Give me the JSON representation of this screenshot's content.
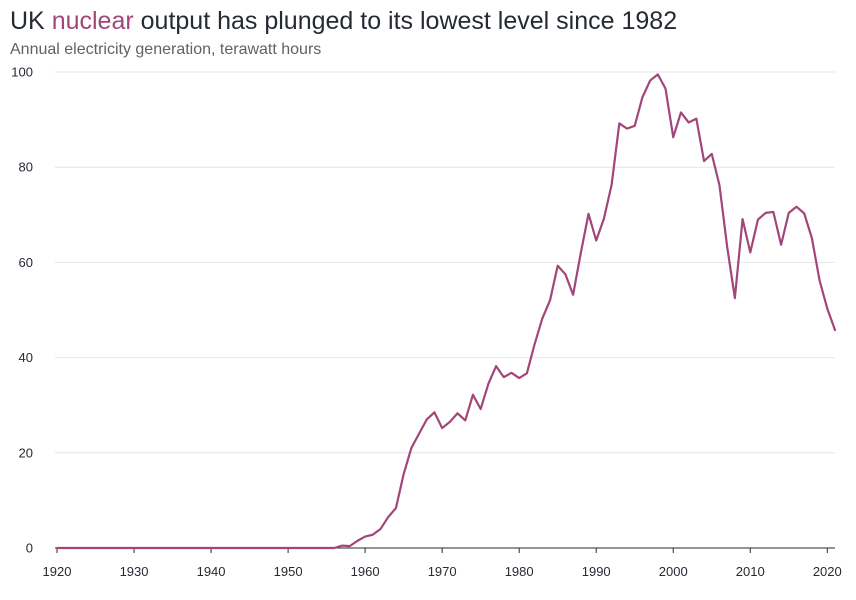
{
  "title": {
    "before": "UK ",
    "highlight": "nuclear",
    "after": " output has plunged to its lowest level since 1982"
  },
  "subtitle": "Annual electricity generation, terawatt hours",
  "colors": {
    "accent": "#a2467a",
    "text": "#262a33",
    "subtitle": "#66605c",
    "grid": "#e6e6e6"
  },
  "chart_data": {
    "type": "line",
    "title": "UK nuclear output has plunged to its lowest level since 1982",
    "subtitle": "Annual electricity generation, terawatt hours",
    "xlabel": "",
    "ylabel": "",
    "xlim": [
      1920,
      2021
    ],
    "ylim": [
      0,
      100
    ],
    "x_ticks": [
      1920,
      1930,
      1940,
      1950,
      1960,
      1970,
      1980,
      1990,
      2000,
      2010,
      2020
    ],
    "y_ticks": [
      0,
      20,
      40,
      60,
      80,
      100
    ],
    "grid": true,
    "legend": "none",
    "series": [
      {
        "color": "#a2467a",
        "x": [
          1920,
          1921,
          1922,
          1923,
          1924,
          1925,
          1926,
          1927,
          1928,
          1929,
          1930,
          1931,
          1932,
          1933,
          1934,
          1935,
          1936,
          1937,
          1938,
          1939,
          1940,
          1941,
          1942,
          1943,
          1944,
          1945,
          1946,
          1947,
          1948,
          1949,
          1950,
          1951,
          1952,
          1953,
          1954,
          1955,
          1956,
          1957,
          1958,
          1959,
          1960,
          1961,
          1962,
          1963,
          1964,
          1965,
          1966,
          1967,
          1968,
          1969,
          1970,
          1971,
          1972,
          1973,
          1974,
          1975,
          1976,
          1977,
          1978,
          1979,
          1980,
          1981,
          1982,
          1983,
          1984,
          1985,
          1986,
          1987,
          1988,
          1989,
          1990,
          1991,
          1992,
          1993,
          1994,
          1995,
          1996,
          1997,
          1998,
          1999,
          2000,
          2001,
          2002,
          2003,
          2004,
          2005,
          2006,
          2007,
          2008,
          2009,
          2010,
          2011,
          2012,
          2013,
          2014,
          2015,
          2016,
          2017,
          2018,
          2019,
          2020,
          2021
        ],
        "values": [
          0,
          0,
          0,
          0,
          0,
          0,
          0,
          0,
          0,
          0,
          0,
          0,
          0,
          0,
          0,
          0,
          0,
          0,
          0,
          0,
          0,
          0,
          0,
          0,
          0,
          0,
          0,
          0,
          0,
          0,
          0,
          0,
          0,
          0,
          0,
          0,
          0,
          0.5,
          0.4,
          1.5,
          2.4,
          2.8,
          4,
          6.5,
          8.4,
          15.5,
          21,
          24,
          27,
          28.5,
          25.2,
          26.5,
          28.3,
          26.8,
          32.2,
          29.2,
          34.5,
          38.2,
          35.9,
          36.8,
          35.7,
          36.7,
          42.8,
          48.2,
          52,
          59.3,
          57.5,
          53.2,
          62,
          70.2,
          64.6,
          69.2,
          76.3,
          89.2,
          88.1,
          88.7,
          94.7,
          98.2,
          99.5,
          96.5,
          86.3,
          91.5,
          89.4,
          90.2,
          81.3,
          82.8,
          76.2,
          63.3,
          52.5,
          69.1,
          62.1,
          69,
          70.4,
          70.6,
          63.7,
          70.4,
          71.7,
          70.3,
          65.1,
          56.2,
          50.3,
          45.8
        ]
      }
    ]
  }
}
